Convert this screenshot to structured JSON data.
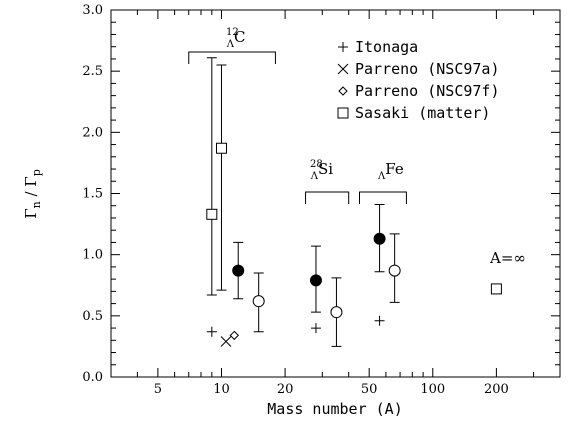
{
  "chart_data": {
    "type": "scatter",
    "xscale": "log",
    "xlim": [
      3,
      400
    ],
    "ylim": [
      0,
      3.0
    ],
    "xlabel": "Mass number (A)",
    "ylabel": "Γn / Γp",
    "ylabel_parts": {
      "g1": "Γ",
      "s1": "n",
      "sep": " / ",
      "g2": "Γ",
      "s2": "p"
    },
    "x_ticks": [
      {
        "value": 5,
        "label": "5"
      },
      {
        "value": 10,
        "label": "10"
      },
      {
        "value": 20,
        "label": "20"
      },
      {
        "value": 50,
        "label": "50"
      },
      {
        "value": 100,
        "label": "100"
      },
      {
        "value": 200,
        "label": "200"
      }
    ],
    "y_ticks": [
      {
        "value": 0.0,
        "label": "0.0"
      },
      {
        "value": 0.5,
        "label": "0.5"
      },
      {
        "value": 1.0,
        "label": "1.0"
      },
      {
        "value": 1.5,
        "label": "1.5"
      },
      {
        "value": 2.0,
        "label": "2.0"
      },
      {
        "value": 2.5,
        "label": "2.5"
      },
      {
        "value": 3.0,
        "label": "3.0"
      }
    ],
    "legend": {
      "placement": "top-right",
      "entries": [
        {
          "marker": "plus",
          "label": "Itonaga"
        },
        {
          "marker": "cross",
          "label": "Parreno (NSC97a)"
        },
        {
          "marker": "diamond",
          "label": "Parreno (NSC97f)"
        },
        {
          "marker": "square",
          "label": "Sasaki (matter)"
        }
      ]
    },
    "annotations": [
      {
        "super": "12",
        "sub": "Λ",
        "base": "C",
        "bracket_x": [
          7,
          18
        ]
      },
      {
        "super": "28",
        "sub": "Λ",
        "base": "Si",
        "bracket_x": [
          25,
          40
        ]
      },
      {
        "super": "",
        "sub": "Λ",
        "base": "Fe",
        "bracket_x": [
          45,
          75
        ]
      },
      {
        "text": "A=∞"
      }
    ],
    "series": [
      {
        "marker": "square",
        "points": [
          {
            "x": 9,
            "y": 1.33,
            "ylo": 0.67,
            "yhi": 2.61
          },
          {
            "x": 10,
            "y": 1.87,
            "ylo": 0.71,
            "yhi": 2.55
          },
          {
            "x": 200,
            "y": 0.72
          }
        ]
      },
      {
        "marker": "filled-circle",
        "points": [
          {
            "x": 12,
            "y": 0.87,
            "ylo": 0.64,
            "yhi": 1.1
          },
          {
            "x": 28,
            "y": 0.79,
            "ylo": 0.53,
            "yhi": 1.07
          },
          {
            "x": 56,
            "y": 1.13,
            "ylo": 0.86,
            "yhi": 1.41
          }
        ]
      },
      {
        "marker": "open-circle",
        "points": [
          {
            "x": 15,
            "y": 0.62,
            "ylo": 0.37,
            "yhi": 0.85
          },
          {
            "x": 35,
            "y": 0.53,
            "ylo": 0.25,
            "yhi": 0.81
          },
          {
            "x": 66,
            "y": 0.87,
            "ylo": 0.61,
            "yhi": 1.17
          }
        ]
      },
      {
        "marker": "plus",
        "points": [
          {
            "x": 9,
            "y": 0.37
          },
          {
            "x": 28,
            "y": 0.4
          },
          {
            "x": 56,
            "y": 0.46
          }
        ]
      },
      {
        "marker": "cross",
        "points": [
          {
            "x": 10.5,
            "y": 0.29
          }
        ]
      },
      {
        "marker": "diamond",
        "points": [
          {
            "x": 11.5,
            "y": 0.34
          }
        ]
      }
    ]
  }
}
